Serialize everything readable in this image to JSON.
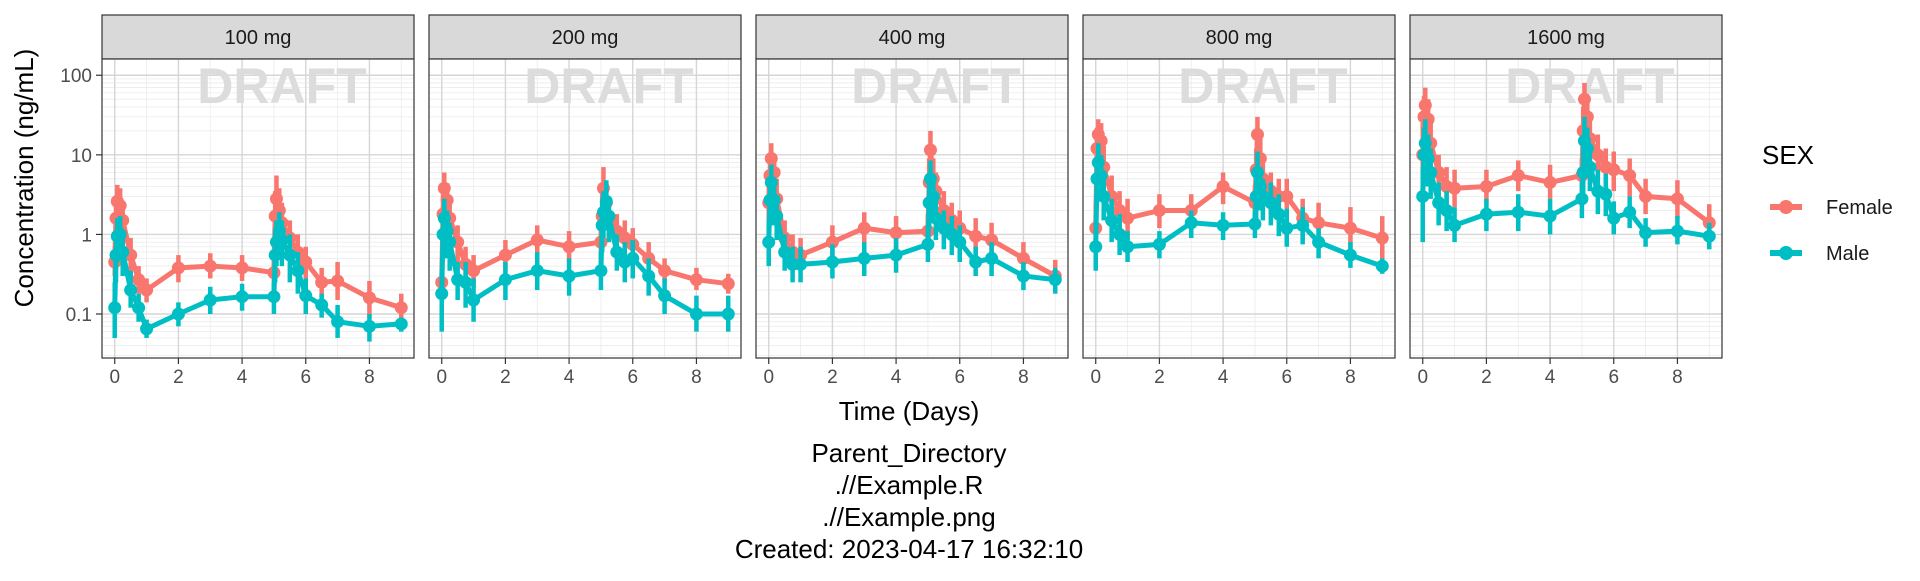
{
  "chart_data": {
    "type": "line",
    "facet_variable": "Dose",
    "panels": [
      "100 mg",
      "200 mg",
      "400 mg",
      "800 mg",
      "1600 mg"
    ],
    "xlabel": "Time (Days)",
    "ylabel": "Concentration (ng/mL)",
    "x_ticks": [
      0,
      2,
      4,
      6,
      8
    ],
    "xlim": [
      -0.4,
      9.4
    ],
    "y_scale": "log10",
    "y_ticks": [
      0.1,
      1,
      10,
      100
    ],
    "y_tick_labels": [
      "0.1",
      "1",
      "10",
      "100"
    ],
    "ylim": [
      0.028,
      160
    ],
    "grid": true,
    "watermark": "DRAFT",
    "legend": {
      "title": "SEX",
      "position": "right",
      "entries": [
        "Female",
        "Male"
      ]
    },
    "series_colors": {
      "Female": "#F8766D",
      "Male": "#00BFC4"
    },
    "x": [
      0,
      0.04,
      0.08,
      0.17,
      0.25,
      0.5,
      0.75,
      1,
      2,
      3,
      4,
      5,
      5.04,
      5.08,
      5.17,
      5.25,
      5.5,
      5.75,
      6,
      6.5,
      7,
      8,
      9
    ],
    "series": [
      {
        "panel": "100 mg",
        "name": "Female",
        "values": [
          0.45,
          1.6,
          2.6,
          2.3,
          1.5,
          0.55,
          0.27,
          0.2,
          0.38,
          0.4,
          0.38,
          0.33,
          1.7,
          2.8,
          2.0,
          1.4,
          0.9,
          0.6,
          0.45,
          0.25,
          0.26,
          0.16,
          0.12
        ],
        "lower": [
          0.3,
          0.8,
          1.2,
          1.1,
          0.7,
          0.3,
          0.18,
          0.14,
          0.25,
          0.28,
          0.26,
          0.2,
          0.7,
          1.3,
          0.9,
          0.6,
          0.45,
          0.3,
          0.25,
          0.16,
          0.15,
          0.09,
          0.08
        ],
        "upper": [
          0.7,
          3.0,
          4.2,
          3.8,
          2.6,
          0.9,
          0.4,
          0.28,
          0.55,
          0.58,
          0.55,
          0.48,
          3.5,
          5.5,
          3.8,
          2.5,
          1.5,
          1.0,
          0.7,
          0.38,
          0.45,
          0.26,
          0.18
        ]
      },
      {
        "panel": "100 mg",
        "name": "Male",
        "values": [
          0.12,
          0.55,
          0.95,
          1.0,
          0.6,
          0.2,
          0.12,
          0.065,
          0.1,
          0.15,
          0.165,
          0.165,
          0.55,
          0.8,
          1.1,
          0.85,
          0.55,
          0.35,
          0.17,
          0.13,
          0.08,
          0.07,
          0.075
        ],
        "lower": [
          0.05,
          0.25,
          0.45,
          0.5,
          0.3,
          0.12,
          0.08,
          0.05,
          0.07,
          0.1,
          0.11,
          0.1,
          0.25,
          0.4,
          0.55,
          0.4,
          0.25,
          0.18,
          0.1,
          0.09,
          0.05,
          0.045,
          0.06
        ],
        "upper": [
          0.25,
          1.0,
          1.6,
          1.7,
          1.1,
          0.35,
          0.18,
          0.085,
          0.14,
          0.22,
          0.24,
          0.25,
          1.1,
          1.5,
          1.9,
          1.5,
          1.0,
          0.6,
          0.28,
          0.18,
          0.13,
          0.1,
          0.09
        ]
      },
      {
        "panel": "200 mg",
        "name": "Female",
        "values": [
          0.25,
          1.8,
          3.8,
          2.7,
          1.6,
          0.8,
          0.42,
          0.35,
          0.55,
          0.85,
          0.7,
          0.8,
          1.7,
          3.8,
          2.5,
          1.5,
          1.1,
          0.9,
          0.75,
          0.5,
          0.35,
          0.27,
          0.24
        ],
        "lower": [
          0.14,
          0.9,
          1.8,
          1.3,
          0.8,
          0.45,
          0.25,
          0.22,
          0.35,
          0.55,
          0.45,
          0.5,
          0.8,
          1.8,
          1.2,
          0.8,
          0.6,
          0.5,
          0.45,
          0.3,
          0.25,
          0.2,
          0.18
        ],
        "upper": [
          0.45,
          3.2,
          6.0,
          4.4,
          2.8,
          1.3,
          0.7,
          0.55,
          0.85,
          1.3,
          1.1,
          1.3,
          3.3,
          7.0,
          4.3,
          2.6,
          1.8,
          1.5,
          1.2,
          0.8,
          0.5,
          0.38,
          0.32
        ]
      },
      {
        "panel": "200 mg",
        "name": "Male",
        "values": [
          0.18,
          1.0,
          1.6,
          1.1,
          0.8,
          0.27,
          0.25,
          0.15,
          0.27,
          0.35,
          0.3,
          0.35,
          1.3,
          1.9,
          2.6,
          1.7,
          0.6,
          0.45,
          0.5,
          0.3,
          0.17,
          0.1,
          0.1
        ],
        "lower": [
          0.06,
          0.5,
          0.7,
          0.5,
          0.35,
          0.15,
          0.12,
          0.08,
          0.15,
          0.2,
          0.17,
          0.2,
          0.6,
          0.9,
          1.3,
          0.8,
          0.35,
          0.25,
          0.28,
          0.17,
          0.1,
          0.06,
          0.06
        ],
        "upper": [
          0.35,
          1.8,
          2.8,
          2.0,
          1.4,
          0.45,
          0.45,
          0.28,
          0.45,
          0.6,
          0.5,
          0.6,
          2.4,
          3.5,
          4.8,
          3.0,
          1.0,
          0.8,
          0.85,
          0.5,
          0.28,
          0.17,
          0.17
        ]
      },
      {
        "panel": "400 mg",
        "name": "Female",
        "values": [
          2.5,
          5.5,
          9.0,
          6.0,
          2.8,
          0.9,
          0.6,
          0.55,
          0.8,
          1.2,
          1.05,
          1.1,
          4.5,
          11.5,
          5.0,
          3.5,
          2.0,
          1.5,
          1.2,
          0.95,
          0.85,
          0.5,
          0.3
        ],
        "lower": [
          1.3,
          2.8,
          4.5,
          3.0,
          1.5,
          0.5,
          0.35,
          0.35,
          0.5,
          0.75,
          0.65,
          0.7,
          2.2,
          5.5,
          2.5,
          1.8,
          1.1,
          0.85,
          0.7,
          0.55,
          0.5,
          0.3,
          0.2
        ],
        "upper": [
          4.5,
          9.5,
          14.0,
          10.0,
          5.0,
          1.5,
          1.0,
          0.9,
          1.3,
          1.9,
          1.7,
          1.8,
          9.0,
          20.0,
          9.0,
          6.0,
          3.5,
          2.5,
          2.0,
          1.6,
          1.4,
          0.8,
          0.48
        ]
      },
      {
        "panel": "400 mg",
        "name": "Male",
        "values": [
          0.8,
          2.7,
          4.5,
          2.7,
          1.7,
          0.6,
          0.42,
          0.42,
          0.45,
          0.5,
          0.55,
          0.75,
          2.5,
          5.0,
          3.0,
          1.6,
          1.2,
          1.0,
          0.8,
          0.45,
          0.5,
          0.3,
          0.27
        ],
        "lower": [
          0.4,
          1.3,
          2.2,
          1.3,
          0.85,
          0.35,
          0.25,
          0.25,
          0.28,
          0.3,
          0.33,
          0.45,
          1.2,
          2.4,
          1.5,
          0.85,
          0.65,
          0.55,
          0.45,
          0.3,
          0.3,
          0.2,
          0.18
        ],
        "upper": [
          1.5,
          5.0,
          7.5,
          4.8,
          3.0,
          1.0,
          0.7,
          0.7,
          0.75,
          0.8,
          0.9,
          1.3,
          4.5,
          8.5,
          5.0,
          2.8,
          2.0,
          1.7,
          1.3,
          0.7,
          0.8,
          0.45,
          0.38
        ]
      },
      {
        "panel": "800 mg",
        "name": "Female",
        "values": [
          1.2,
          12.0,
          18.0,
          15.0,
          7.0,
          3.0,
          2.0,
          1.6,
          2.0,
          2.0,
          4.0,
          2.5,
          6.5,
          18.0,
          9.0,
          5.0,
          3.5,
          3.0,
          3.0,
          1.6,
          1.4,
          1.2,
          0.9
        ],
        "lower": [
          0.4,
          5.0,
          8.0,
          7.0,
          3.5,
          1.5,
          1.0,
          0.85,
          1.2,
          1.2,
          2.4,
          1.3,
          3.0,
          9.0,
          4.5,
          2.5,
          1.8,
          1.6,
          1.6,
          0.85,
          0.75,
          0.6,
          0.45
        ],
        "upper": [
          2.5,
          22.0,
          28.0,
          25.0,
          13.0,
          5.5,
          3.5,
          2.8,
          3.2,
          3.2,
          6.0,
          4.2,
          12.0,
          30.0,
          16.0,
          9.0,
          6.0,
          5.0,
          5.0,
          2.8,
          2.5,
          2.2,
          1.7
        ]
      },
      {
        "panel": "800 mg",
        "name": "Male",
        "values": [
          0.7,
          5.0,
          8.0,
          5.5,
          3.0,
          1.5,
          1.0,
          0.7,
          0.75,
          1.4,
          1.3,
          1.35,
          3.0,
          6.0,
          4.0,
          3.0,
          2.5,
          1.8,
          1.2,
          1.3,
          0.8,
          0.55,
          0.4
        ],
        "lower": [
          0.35,
          2.5,
          4.0,
          2.8,
          1.5,
          0.8,
          0.55,
          0.45,
          0.5,
          0.9,
          0.85,
          0.9,
          1.5,
          3.0,
          2.0,
          1.5,
          1.3,
          0.95,
          0.7,
          0.75,
          0.5,
          0.38,
          0.32
        ],
        "upper": [
          1.4,
          9.0,
          14.0,
          10.0,
          5.5,
          2.8,
          1.8,
          1.1,
          1.1,
          2.0,
          1.9,
          2.0,
          5.5,
          11.0,
          7.0,
          5.0,
          4.5,
          3.2,
          2.1,
          2.2,
          1.2,
          0.8,
          0.5
        ]
      },
      {
        "panel": "1600 mg",
        "name": "Female",
        "values": [
          10.0,
          30.0,
          42.0,
          28.0,
          14.0,
          6.0,
          4.0,
          3.8,
          4.0,
          5.5,
          4.5,
          5.5,
          20.0,
          50.0,
          30.0,
          16.0,
          10.0,
          7.0,
          6.5,
          5.5,
          3.0,
          2.8,
          1.4
        ],
        "lower": [
          3.0,
          12.0,
          20.0,
          13.0,
          7.0,
          3.0,
          2.0,
          2.2,
          2.5,
          3.5,
          2.8,
          3.5,
          9.0,
          25.0,
          15.0,
          8.0,
          5.0,
          3.8,
          3.5,
          3.0,
          1.8,
          1.6,
          0.9
        ],
        "upper": [
          25.0,
          55.0,
          70.0,
          50.0,
          25.0,
          10.0,
          7.0,
          6.5,
          6.5,
          8.5,
          7.5,
          9.0,
          40.0,
          80.0,
          55.0,
          30.0,
          18.0,
          12.0,
          11.0,
          9.0,
          5.0,
          4.8,
          2.4
        ]
      },
      {
        "panel": "1600 mg",
        "name": "Male",
        "values": [
          3.0,
          10.0,
          14.0,
          9.0,
          6.0,
          2.5,
          2.0,
          1.3,
          1.8,
          1.9,
          1.7,
          2.8,
          6.0,
          15.0,
          12.0,
          7.0,
          3.5,
          3.2,
          1.6,
          1.9,
          1.05,
          1.1,
          0.95
        ],
        "lower": [
          0.8,
          4.0,
          6.0,
          4.0,
          2.8,
          1.3,
          1.1,
          0.8,
          1.1,
          1.1,
          1.0,
          1.6,
          2.8,
          7.0,
          5.5,
          3.5,
          1.8,
          1.7,
          1.0,
          1.2,
          0.7,
          0.75,
          0.65
        ],
        "upper": [
          7.0,
          22.0,
          28.0,
          18.0,
          12.0,
          4.5,
          3.5,
          2.2,
          2.8,
          3.2,
          2.8,
          4.5,
          12.0,
          30.0,
          22.0,
          13.0,
          6.5,
          5.8,
          2.6,
          3.0,
          1.6,
          1.7,
          1.4
        ]
      }
    ]
  },
  "caption": {
    "line1": "Parent_Directory",
    "line2": ".//Example.R",
    "line3": ".//Example.png",
    "line4": "Created: 2023-04-17 16:32:10"
  }
}
